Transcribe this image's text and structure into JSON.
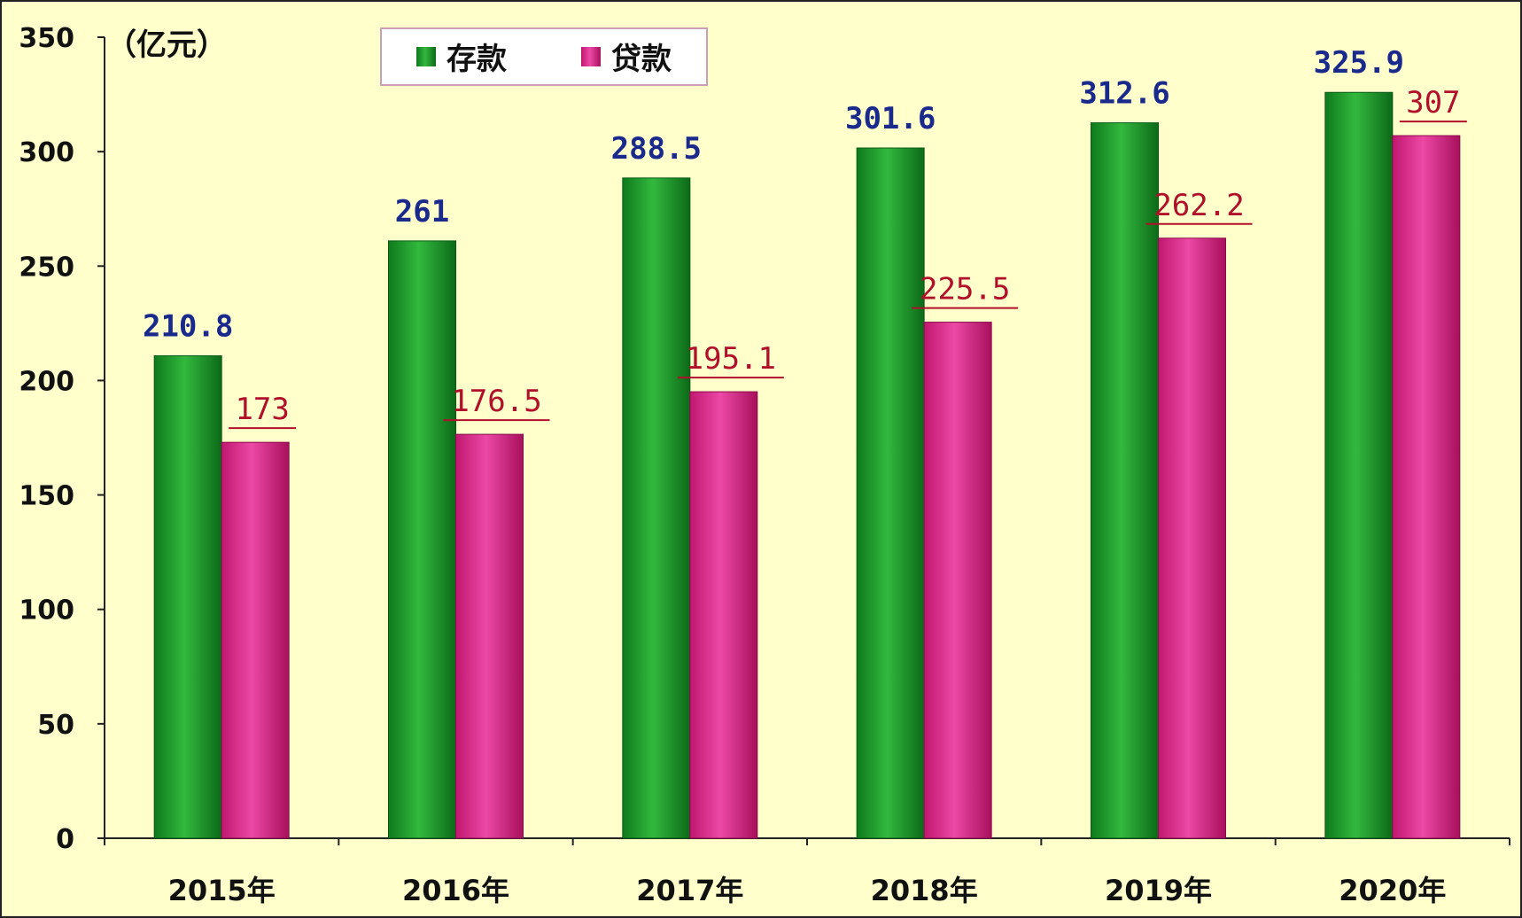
{
  "chart_data": {
    "type": "bar",
    "unit_label": "（亿元）",
    "categories": [
      "2015年",
      "2016年",
      "2017年",
      "2018年",
      "2019年",
      "2020年"
    ],
    "series": [
      {
        "name": "存款",
        "color": "#1a9a2a",
        "values": [
          210.8,
          261,
          288.5,
          301.6,
          312.6,
          325.9
        ],
        "labels": [
          "210.8",
          "261",
          "288.5",
          "301.6",
          "312.6",
          "325.9"
        ]
      },
      {
        "name": "贷款",
        "color": "#dd2a90",
        "values": [
          173,
          176.5,
          195.1,
          225.5,
          262.2,
          307
        ],
        "labels": [
          "173",
          "176.5",
          "195.1",
          "225.5",
          "262.2",
          "307"
        ]
      }
    ],
    "ylim": [
      0,
      350
    ],
    "yticks": [
      0,
      50,
      100,
      150,
      200,
      250,
      300,
      350
    ],
    "grid": false,
    "legend_position": "top"
  }
}
